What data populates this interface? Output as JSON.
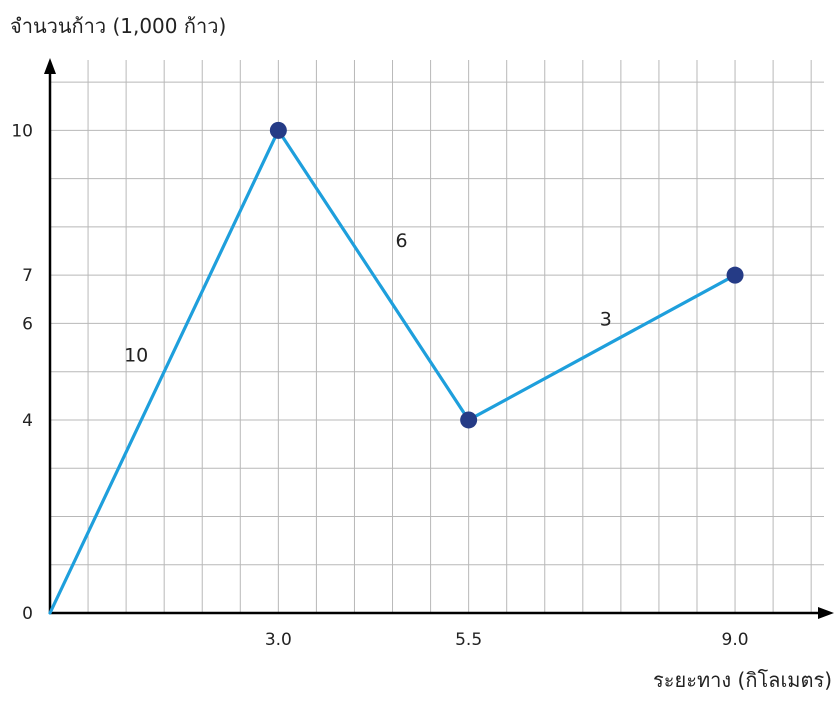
{
  "chart_data": {
    "type": "line",
    "ylabel": "จำนวนก้าว (1,000 ก้าว)",
    "xlabel": "ระยะทาง (กิโลเมตร)",
    "x": [
      0,
      3.0,
      5.5,
      9.0
    ],
    "y": [
      0,
      10,
      4,
      7
    ],
    "xlim": [
      0,
      10.3
    ],
    "ylim": [
      0,
      11.5
    ],
    "x_grid_step": 0.5,
    "y_grid_step": 1,
    "x_tick_values": [
      3.0,
      5.5,
      9.0
    ],
    "x_tick_labels": [
      "3.0",
      "5.5",
      "9.0"
    ],
    "y_tick_values": [
      0,
      4,
      6,
      7,
      10
    ],
    "y_tick_labels": [
      "0",
      "4",
      "6",
      "7",
      "10"
    ],
    "segment_labels": [
      "10",
      "6",
      "3"
    ],
    "grid": true,
    "line_color": "#1e9fdc",
    "marker_color": "#253b86",
    "grid_color": "#b8b8b8",
    "axis_color": "#000000"
  }
}
